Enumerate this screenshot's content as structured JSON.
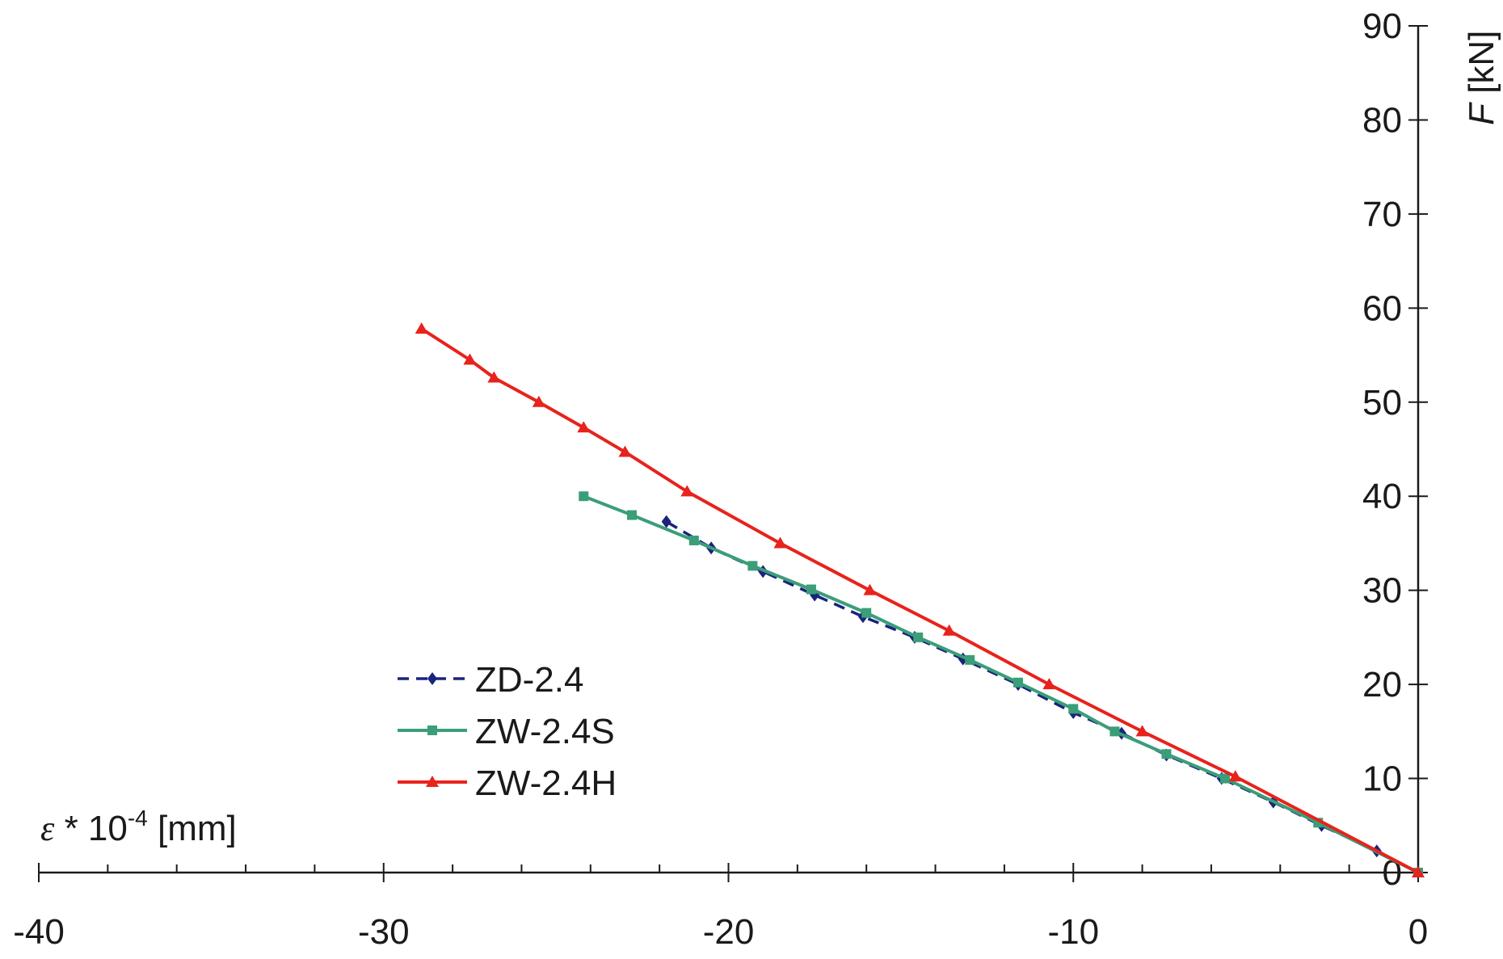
{
  "chart_data": {
    "type": "line",
    "xlabel": {
      "symbol": "ε",
      "mid": " * 10",
      "sup": "-4",
      "unit": " [mm]"
    },
    "ylabel": {
      "symbol": "F",
      "unit": " [kN]"
    },
    "xlim": [
      -40,
      0
    ],
    "ylim": [
      0,
      90
    ],
    "x_ticks": [
      -40,
      -30,
      -20,
      -10,
      0
    ],
    "x_tick_labels": [
      "-40",
      "-30",
      "-20",
      "-10",
      "0"
    ],
    "y_ticks": [
      0,
      10,
      20,
      30,
      40,
      50,
      60,
      70,
      80,
      90
    ],
    "y_tick_labels": [
      "0",
      "10",
      "20",
      "30",
      "40",
      "50",
      "60",
      "70",
      "80",
      "90"
    ],
    "grid": false,
    "legend_position": "lower-left",
    "series": [
      {
        "name": "ZD-2.4",
        "color": "#1a237e",
        "dash": "dashed",
        "marker": "diamond",
        "x": [
          0,
          -1.2,
          -2.8,
          -4.2,
          -5.7,
          -7.3,
          -8.6,
          -10.0,
          -11.6,
          -13.2,
          -14.6,
          -16.1,
          -17.5,
          -19.0,
          -20.5,
          -21.8
        ],
        "y": [
          0,
          2.3,
          5.0,
          7.5,
          10.0,
          12.5,
          14.8,
          17.0,
          20.0,
          22.7,
          25.0,
          27.2,
          29.5,
          32.0,
          34.5,
          37.3
        ]
      },
      {
        "name": "ZW-2.4S",
        "color": "#3a9e78",
        "dash": "solid",
        "marker": "square",
        "x": [
          0,
          -2.9,
          -5.6,
          -7.3,
          -8.8,
          -10.0,
          -11.6,
          -13.0,
          -14.5,
          -16.0,
          -17.6,
          -19.3,
          -21.0,
          -22.8,
          -24.2
        ],
        "y": [
          0,
          5.3,
          10.0,
          12.6,
          15.0,
          17.4,
          20.2,
          22.6,
          25.0,
          27.6,
          30.1,
          32.6,
          35.3,
          38.0,
          40.0
        ]
      },
      {
        "name": "ZW-2.4H",
        "color": "#e8221c",
        "dash": "solid",
        "marker": "triangle",
        "x": [
          0,
          -5.3,
          -8.0,
          -10.7,
          -13.6,
          -15.9,
          -18.5,
          -21.2,
          -23.0,
          -24.2,
          -25.5,
          -26.8,
          -27.5,
          -28.9
        ],
        "y": [
          0,
          10.2,
          15.0,
          20.0,
          25.7,
          30.0,
          35.0,
          40.5,
          44.7,
          47.3,
          50.0,
          52.6,
          54.5,
          57.8
        ]
      }
    ]
  }
}
